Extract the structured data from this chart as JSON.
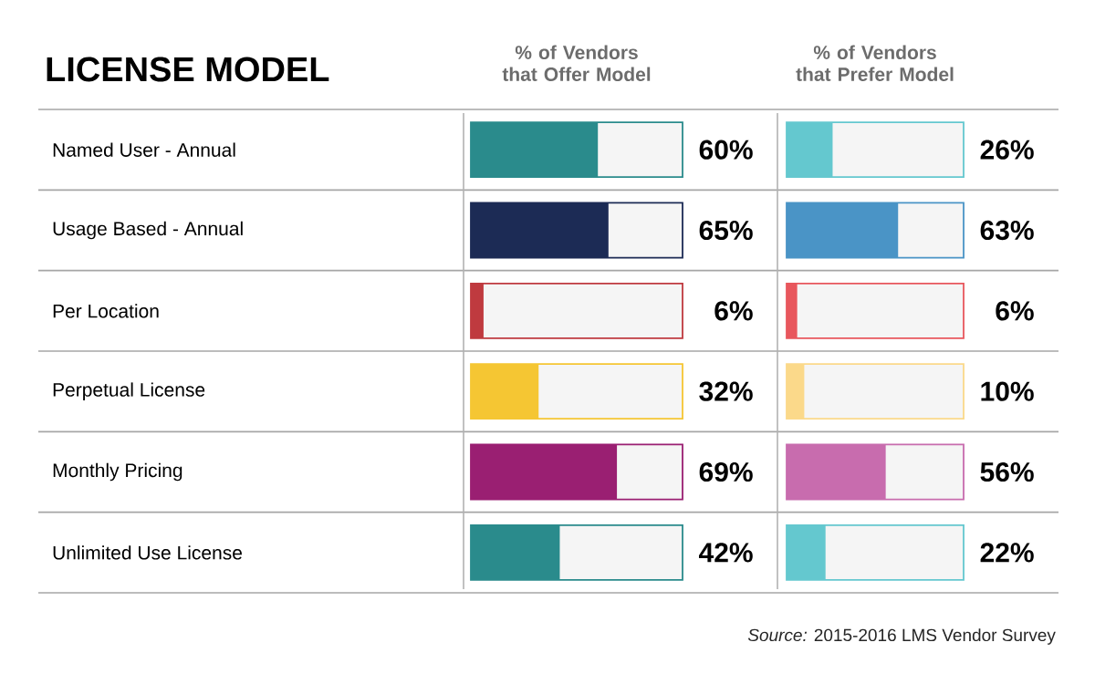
{
  "chart_data": [
    {
      "type": "bar",
      "orientation": "horizontal",
      "ylabel": "LICENSE MODEL",
      "title": "% of Vendors that Offer Model",
      "categories": [
        "Named User - Annual",
        "Usage Based - Annual",
        "Per Location",
        "Perpetual License",
        "Monthly Pricing",
        "Unlimited Use License"
      ],
      "values": [
        60,
        65,
        6,
        32,
        69,
        42
      ],
      "value_labels": [
        "60%",
        "65%",
        "6%",
        "32%",
        "69%",
        "42%"
      ],
      "colors": [
        "#2a8b8c",
        "#1c2b55",
        "#bf3a3f",
        "#f5c633",
        "#9a1f72",
        "#2a8b8c"
      ],
      "xlim": [
        0,
        100
      ],
      "tick_labels": "y"
    },
    {
      "type": "bar",
      "orientation": "horizontal",
      "title": "% of Vendors that Prefer Model",
      "values": [
        26,
        63,
        6,
        10,
        56,
        22
      ],
      "value_labels": [
        "26%",
        "63%",
        "6%",
        "10%",
        "56%",
        "22%"
      ],
      "colors": [
        "#64c8cf",
        "#4a94c6",
        "#e8575d",
        "#fbd98a",
        "#c86cae",
        "#64c8cf"
      ],
      "xlim": [
        0,
        100
      ],
      "tick_labels": false,
      "annotations": [
        "*Source:*  2015-2016 LMS Vendor Survey"
      ]
    }
  ]
}
